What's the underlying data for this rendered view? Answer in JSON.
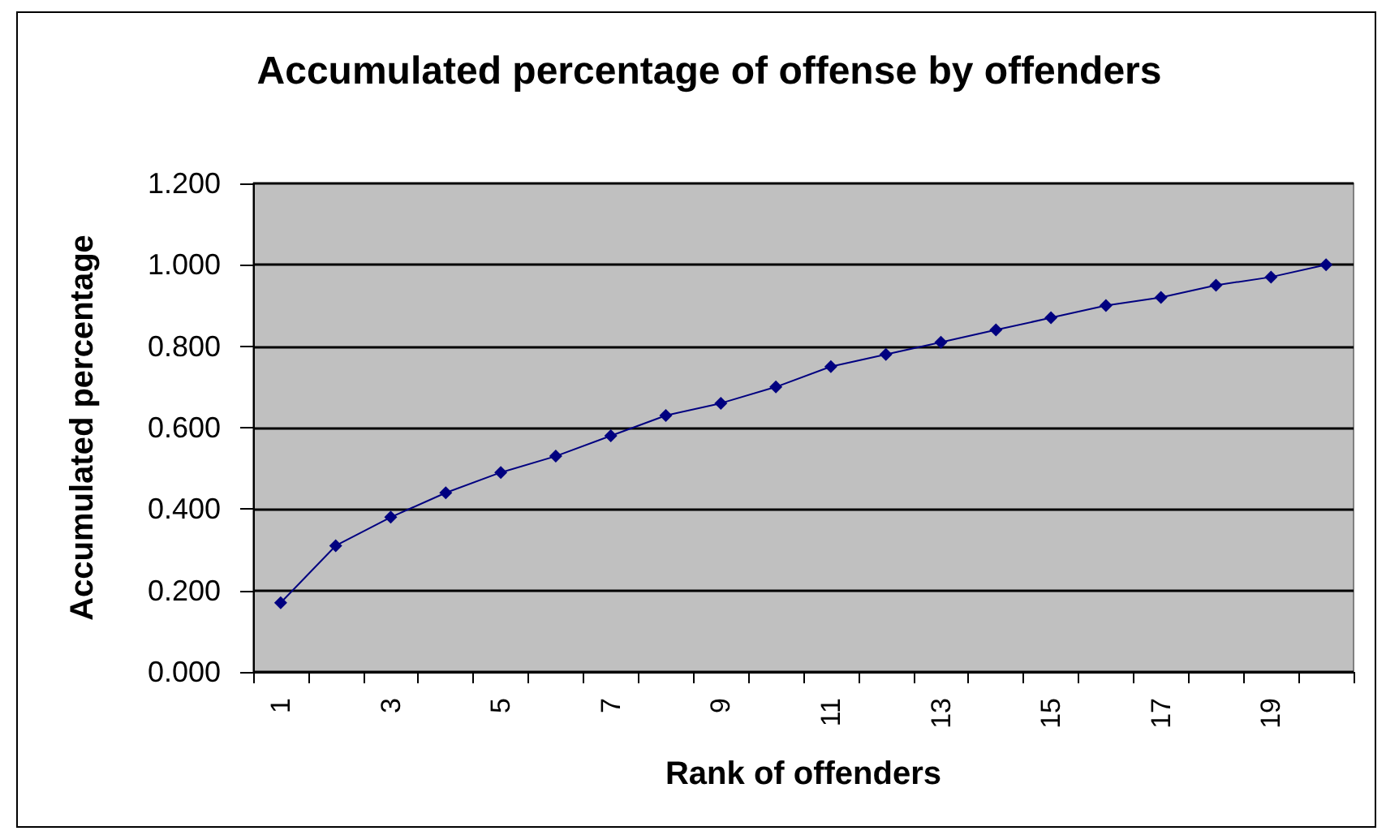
{
  "chart_data": {
    "type": "line",
    "title": "Accumulated percentage of offense by offenders",
    "xlabel": "Rank of offenders",
    "ylabel": "Accumulated percentage",
    "categories": [
      "1",
      null,
      "3",
      null,
      "5",
      null,
      "7",
      null,
      "9",
      null,
      "11",
      null,
      "13",
      null,
      "15",
      null,
      "17",
      null,
      "19",
      null
    ],
    "series": [
      {
        "color": "#000080",
        "values": [
          0.17,
          0.31,
          0.38,
          0.44,
          0.49,
          0.53,
          0.58,
          0.63,
          0.66,
          0.7,
          0.75,
          0.78,
          0.81,
          0.84,
          0.87,
          0.9,
          0.92,
          0.95,
          0.97,
          1.0
        ]
      }
    ],
    "ylim": [
      0,
      1.2
    ],
    "yticks": [
      {
        "value": 0,
        "label": "0.000"
      },
      {
        "value": 0.2,
        "label": "0.200"
      },
      {
        "value": 0.4,
        "label": "0.400"
      },
      {
        "value": 0.6,
        "label": "0.600"
      },
      {
        "value": 0.8,
        "label": "0.800"
      },
      {
        "value": 1.0,
        "label": "1.000"
      },
      {
        "value": 1.2,
        "label": "1.200"
      }
    ],
    "grid": "y",
    "marker": "diamond",
    "line_style": "solid"
  }
}
